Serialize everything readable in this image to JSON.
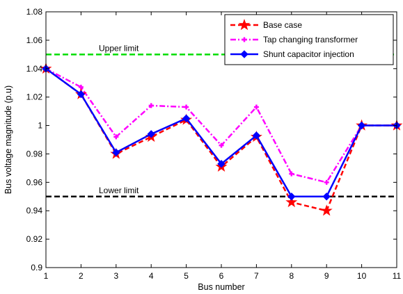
{
  "chart_data": {
    "type": "line",
    "title": "",
    "xlabel": "Bus number",
    "ylabel": "Bus voltage magnitude (p.u)",
    "xlim": [
      1,
      11
    ],
    "ylim": [
      0.9,
      1.08
    ],
    "x": [
      1,
      2,
      3,
      4,
      5,
      6,
      7,
      8,
      9,
      10,
      11
    ],
    "x_ticks": [
      "1",
      "2",
      "3",
      "4",
      "5",
      "6",
      "7",
      "8",
      "9",
      "10",
      "11"
    ],
    "y_ticks": [
      "0.9",
      "0.92",
      "0.94",
      "0.96",
      "0.98",
      "1",
      "1.02",
      "1.04",
      "1.06",
      "1.08"
    ],
    "y_tick_values": [
      0.9,
      0.92,
      0.94,
      0.96,
      0.98,
      1.0,
      1.02,
      1.04,
      1.06,
      1.08
    ],
    "grid": false,
    "legend_position": "top-right",
    "series": [
      {
        "name": "Base case",
        "values": [
          1.04,
          1.022,
          0.98,
          0.992,
          1.004,
          0.971,
          0.992,
          0.946,
          0.94,
          1.0,
          1.0
        ],
        "color": "#ff0000",
        "dash": "dashed",
        "marker": "star"
      },
      {
        "name": "Tap changing transformer",
        "values": [
          1.04,
          1.027,
          0.992,
          1.014,
          1.013,
          0.986,
          1.013,
          0.966,
          0.96,
          1.0,
          1.0
        ],
        "color": "#ff00ff",
        "dash": "dash-dot",
        "marker": "plus"
      },
      {
        "name": "Shunt capacitor injection",
        "values": [
          1.04,
          1.022,
          0.981,
          0.994,
          1.005,
          0.973,
          0.993,
          0.95,
          0.95,
          1.0,
          1.0
        ],
        "color": "#0000ff",
        "dash": "solid",
        "marker": "diamond"
      }
    ],
    "reference_lines": [
      {
        "label": "Upper limit",
        "value": 1.05,
        "color": "#00dd00"
      },
      {
        "label": "Lower limit",
        "value": 0.95,
        "color": "#000000"
      }
    ]
  }
}
